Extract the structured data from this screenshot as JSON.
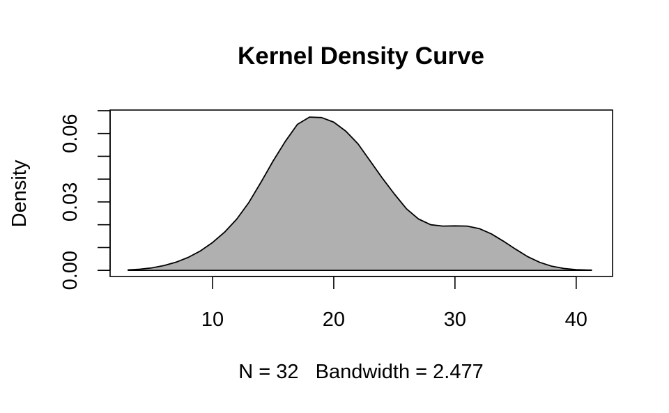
{
  "chart_data": {
    "type": "area",
    "title": "Kernel Density Curve",
    "xlabel": "N = 32   Bandwidth = 2.477",
    "ylabel": "Density",
    "xlim": [
      1.55,
      43.0
    ],
    "ylim": [
      -0.0027,
      0.0703
    ],
    "x_ticks": [
      10,
      20,
      30,
      40
    ],
    "x_tick_labels": [
      "10",
      "20",
      "30",
      "40"
    ],
    "y_ticks": [
      0.0,
      0.01,
      0.02,
      0.03,
      0.04,
      0.05,
      0.06,
      0.07
    ],
    "y_tick_labels": [
      "0.00",
      "",
      "",
      "0.03",
      "",
      "",
      "0.06",
      ""
    ],
    "grid": false,
    "legend": "none",
    "fill_color": "#b0b0b0",
    "line_color": "#000000",
    "series": [
      {
        "x": [
          3.0,
          4.0,
          5.0,
          6.0,
          7.0,
          8.0,
          9.0,
          10.0,
          11.0,
          12.0,
          13.0,
          14.0,
          15.0,
          16.0,
          17.0,
          18.0,
          19.0,
          20.0,
          21.0,
          22.0,
          23.0,
          24.0,
          25.0,
          26.0,
          27.0,
          28.0,
          29.0,
          30.0,
          31.0,
          32.0,
          33.0,
          34.0,
          35.0,
          36.0,
          37.0,
          38.0,
          39.0,
          40.0,
          41.0,
          41.3
        ],
        "y": [
          0.0002,
          0.0005,
          0.0011,
          0.0021,
          0.0036,
          0.0057,
          0.0085,
          0.0122,
          0.0168,
          0.0225,
          0.0298,
          0.0387,
          0.048,
          0.0565,
          0.064,
          0.0672,
          0.067,
          0.065,
          0.061,
          0.0555,
          0.048,
          0.0405,
          0.0335,
          0.027,
          0.0225,
          0.02,
          0.0194,
          0.0195,
          0.0194,
          0.0183,
          0.016,
          0.0128,
          0.0093,
          0.006,
          0.0035,
          0.0018,
          0.0008,
          0.0003,
          0.0001,
          0.0001
        ]
      }
    ]
  }
}
